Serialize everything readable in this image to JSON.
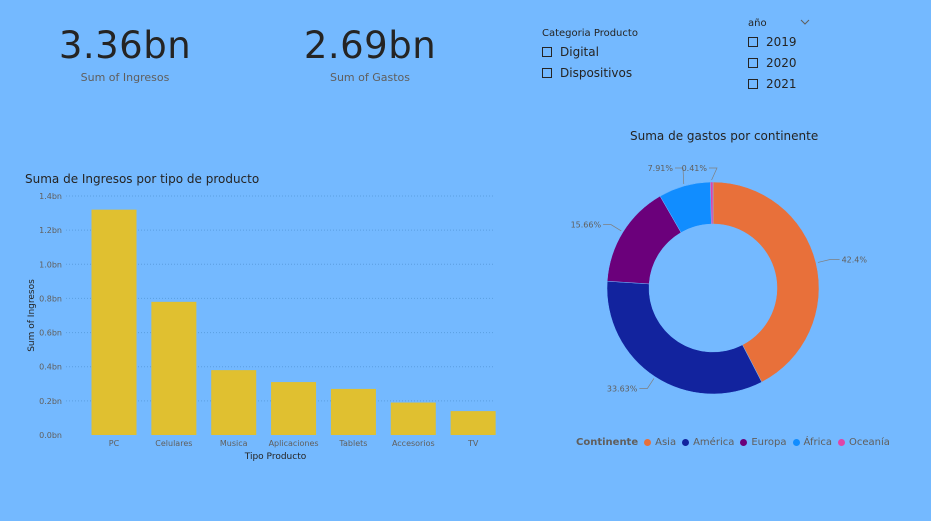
{
  "kpis": [
    {
      "value": "3.36bn",
      "label": "Sum of Ingresos"
    },
    {
      "value": "2.69bn",
      "label": "Sum of Gastos"
    }
  ],
  "slicer_categoria": {
    "title": "Categoria Producto",
    "options": [
      "Digital",
      "Dispositivos"
    ]
  },
  "slicer_anio": {
    "title": "año",
    "options": [
      "2019",
      "2020",
      "2021"
    ]
  },
  "bar_chart": {
    "title": "Suma de Ingresos por tipo de producto",
    "xlabel": "Tipo Producto",
    "ylabel": "Sum of Ingresos",
    "bar_color": "#e0c030"
  },
  "donut_chart": {
    "title": "Suma de gastos por continente",
    "legend_title": "Continente"
  },
  "chart_data": [
    {
      "type": "bar",
      "title": "Suma de Ingresos por tipo de producto",
      "xlabel": "Tipo Producto",
      "ylabel": "Sum of Ingresos",
      "categories": [
        "PC",
        "Celulares",
        "Musica",
        "Aplicaciones",
        "Tablets",
        "Accesorios",
        "TV"
      ],
      "values": [
        1.32,
        0.78,
        0.38,
        0.31,
        0.27,
        0.19,
        0.14
      ],
      "unit": "bn",
      "ylim": [
        0,
        1.4
      ],
      "yticks": [
        "0.0bn",
        "0.2bn",
        "0.4bn",
        "0.6bn",
        "0.8bn",
        "1.0bn",
        "1.2bn",
        "1.4bn"
      ],
      "grid": true
    },
    {
      "type": "pie",
      "donut": true,
      "title": "Suma de gastos por continente",
      "legend_title": "Continente",
      "legend_position": "bottom",
      "labels": [
        "Asia",
        "América",
        "Europa",
        "África",
        "Oceanía"
      ],
      "values": [
        42.4,
        33.63,
        15.66,
        7.91,
        0.41
      ],
      "value_labels": [
        "42.4%",
        "33.63%",
        "15.66%",
        "7.91%",
        "0.41%"
      ],
      "colors": [
        "#e8703a",
        "#12239e",
        "#6b007b",
        "#118dff",
        "#e044a7"
      ]
    }
  ]
}
